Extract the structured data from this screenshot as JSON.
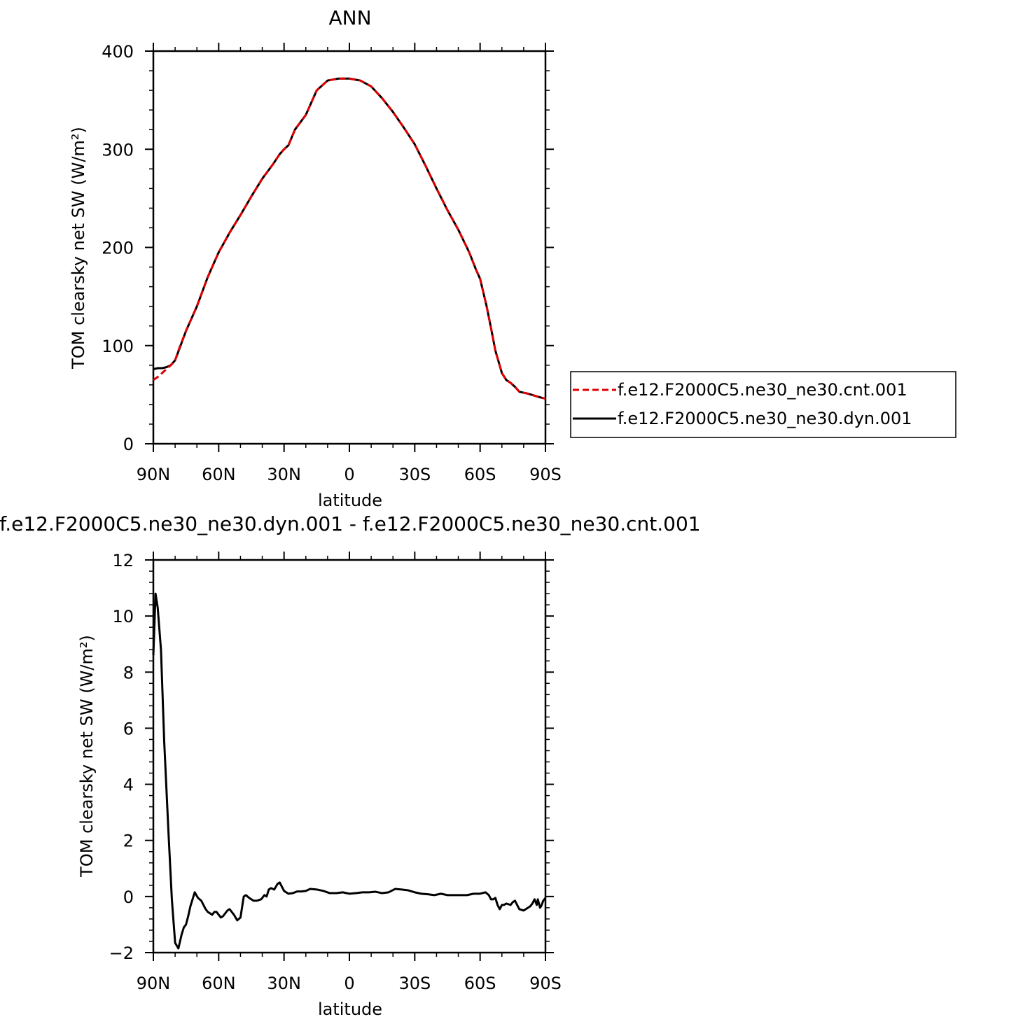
{
  "chart_data": [
    {
      "type": "line",
      "title": "ANN",
      "xlabel": "latitude",
      "ylabel": "TOM clearsky net SW (W/m²)",
      "xlim": [
        90,
        -90
      ],
      "ylim": [
        0,
        400
      ],
      "x_ticks": [
        {
          "value": 90,
          "label": "90N"
        },
        {
          "value": 60,
          "label": "60N"
        },
        {
          "value": 30,
          "label": "30N"
        },
        {
          "value": 0,
          "label": "0"
        },
        {
          "value": -30,
          "label": "30S"
        },
        {
          "value": -60,
          "label": "60S"
        },
        {
          "value": -90,
          "label": "90S"
        }
      ],
      "y_ticks": [
        {
          "value": 0,
          "label": "0"
        },
        {
          "value": 100,
          "label": "100"
        },
        {
          "value": 200,
          "label": "200"
        },
        {
          "value": 300,
          "label": "300"
        },
        {
          "value": 400,
          "label": "400"
        }
      ],
      "legend": {
        "placement": "right",
        "entries": [
          {
            "label": "f.e12.F2000C5.ne30_ne30.cnt.001",
            "color": "#e00000",
            "dash": true
          },
          {
            "label": "f.e12.F2000C5.ne30_ne30.dyn.001",
            "color": "#000000",
            "dash": false
          }
        ]
      },
      "series": [
        {
          "name": "f.e12.F2000C5.ne30_ne30.cnt.001",
          "color": "#e00000",
          "dashed": true,
          "x": [
            90,
            88,
            86,
            84,
            82,
            80,
            78,
            75,
            70,
            65,
            60,
            55,
            50,
            45,
            40,
            35,
            32,
            30,
            28,
            25,
            20,
            15,
            10,
            5,
            0,
            -5,
            -10,
            -15,
            -20,
            -25,
            -30,
            -35,
            -40,
            -45,
            -50,
            -55,
            -58,
            -60,
            -63,
            -65,
            -67,
            -70,
            -72,
            -74,
            -76,
            -78,
            -80,
            -82,
            -85,
            -88,
            -90
          ],
          "y": [
            65,
            68,
            72,
            76,
            80,
            85,
            98,
            115,
            140,
            170,
            195,
            215,
            233,
            252,
            270,
            285,
            295,
            300,
            304,
            320,
            335,
            360,
            370,
            372,
            372,
            370,
            364,
            352,
            338,
            322,
            305,
            283,
            260,
            238,
            218,
            195,
            178,
            168,
            140,
            118,
            95,
            72,
            65,
            62,
            58,
            53,
            52,
            51,
            49,
            47,
            46
          ]
        },
        {
          "name": "f.e12.F2000C5.ne30_ne30.dyn.001",
          "color": "#000000",
          "dashed": false,
          "x": [
            90,
            88,
            86,
            84,
            82,
            80,
            78,
            75,
            70,
            65,
            60,
            55,
            50,
            45,
            40,
            35,
            32,
            30,
            28,
            25,
            20,
            15,
            10,
            5,
            0,
            -5,
            -10,
            -15,
            -20,
            -25,
            -30,
            -35,
            -40,
            -45,
            -50,
            -55,
            -58,
            -60,
            -63,
            -65,
            -67,
            -70,
            -72,
            -74,
            -76,
            -78,
            -80,
            -82,
            -85,
            -88,
            -90
          ],
          "y": [
            76,
            77,
            77,
            78,
            80,
            85,
            97,
            115,
            140,
            170,
            195,
            215,
            233,
            252,
            270,
            285,
            295,
            300,
            304,
            320,
            335,
            360,
            370,
            372,
            372,
            370,
            364,
            352,
            338,
            322,
            305,
            283,
            260,
            238,
            218,
            195,
            178,
            168,
            140,
            118,
            95,
            72,
            65,
            62,
            58,
            53,
            52,
            51,
            49,
            47,
            46
          ]
        }
      ]
    },
    {
      "type": "line",
      "title": "f.e12.F2000C5.ne30_ne30.dyn.001 - f.e12.F2000C5.ne30_ne30.cnt.001",
      "xlabel": "latitude",
      "ylabel": "TOM clearsky net SW (W/m²)",
      "xlim": [
        90,
        -90
      ],
      "ylim": [
        -2,
        12
      ],
      "x_ticks": [
        {
          "value": 90,
          "label": "90N"
        },
        {
          "value": 60,
          "label": "60N"
        },
        {
          "value": 30,
          "label": "30N"
        },
        {
          "value": 0,
          "label": "0"
        },
        {
          "value": -30,
          "label": "30S"
        },
        {
          "value": -60,
          "label": "60S"
        },
        {
          "value": -90,
          "label": "90S"
        }
      ],
      "y_ticks": [
        {
          "value": -2,
          "label": "−2"
        },
        {
          "value": 0,
          "label": "0"
        },
        {
          "value": 2,
          "label": "2"
        },
        {
          "value": 4,
          "label": "4"
        },
        {
          "value": 6,
          "label": "6"
        },
        {
          "value": 8,
          "label": "8"
        },
        {
          "value": 10,
          "label": "10"
        },
        {
          "value": 12,
          "label": "12"
        }
      ],
      "series": [
        {
          "color": "#000000",
          "x": [
            90,
            89,
            88,
            86.5,
            85,
            83,
            81.5,
            80,
            78.5,
            77,
            76,
            75,
            74,
            73,
            71,
            69.5,
            68,
            66,
            65,
            63,
            62,
            61,
            59,
            58,
            56,
            55,
            53,
            51.5,
            50,
            48.5,
            47.5,
            46,
            44,
            42.5,
            40.5,
            39,
            38,
            37,
            36,
            34.5,
            33,
            32,
            31,
            30,
            29,
            28,
            26,
            24,
            22,
            20,
            18,
            15,
            12,
            9,
            6,
            3,
            0,
            -3,
            -6,
            -9,
            -12,
            -15,
            -18,
            -21,
            -24,
            -27,
            -30,
            -33,
            -36,
            -39,
            -42,
            -45,
            -48,
            -51,
            -54,
            -57,
            -60,
            -62.5,
            -64,
            -65,
            -66,
            -67,
            -68,
            -69,
            -70,
            -71,
            -72,
            -74,
            -75,
            -76,
            -77,
            -78,
            -80,
            -81,
            -83,
            -84,
            -85,
            -86,
            -86.5,
            -87,
            -87.5,
            -88,
            -89,
            -90
          ],
          "y": [
            8.6,
            10.8,
            10.3,
            8.8,
            5.5,
            2.2,
            -0.1,
            -1.65,
            -1.85,
            -1.35,
            -1.1,
            -1.0,
            -0.7,
            -0.35,
            0.15,
            -0.05,
            -0.15,
            -0.45,
            -0.55,
            -0.65,
            -0.55,
            -0.55,
            -0.75,
            -0.7,
            -0.5,
            -0.45,
            -0.65,
            -0.85,
            -0.75,
            0.0,
            0.05,
            -0.05,
            -0.15,
            -0.15,
            -0.1,
            0.05,
            0.0,
            0.25,
            0.3,
            0.25,
            0.45,
            0.5,
            0.35,
            0.2,
            0.15,
            0.1,
            0.12,
            0.18,
            0.18,
            0.2,
            0.27,
            0.25,
            0.2,
            0.12,
            0.12,
            0.15,
            0.1,
            0.12,
            0.15,
            0.15,
            0.17,
            0.12,
            0.15,
            0.27,
            0.25,
            0.22,
            0.15,
            0.1,
            0.08,
            0.05,
            0.1,
            0.05,
            0.05,
            0.05,
            0.05,
            0.1,
            0.1,
            0.15,
            0.05,
            -0.1,
            -0.1,
            -0.05,
            -0.3,
            -0.45,
            -0.3,
            -0.3,
            -0.25,
            -0.3,
            -0.2,
            -0.15,
            -0.3,
            -0.45,
            -0.5,
            -0.45,
            -0.35,
            -0.25,
            -0.1,
            -0.3,
            -0.1,
            -0.25,
            -0.4,
            -0.35,
            -0.15,
            -0.05
          ]
        }
      ]
    }
  ]
}
